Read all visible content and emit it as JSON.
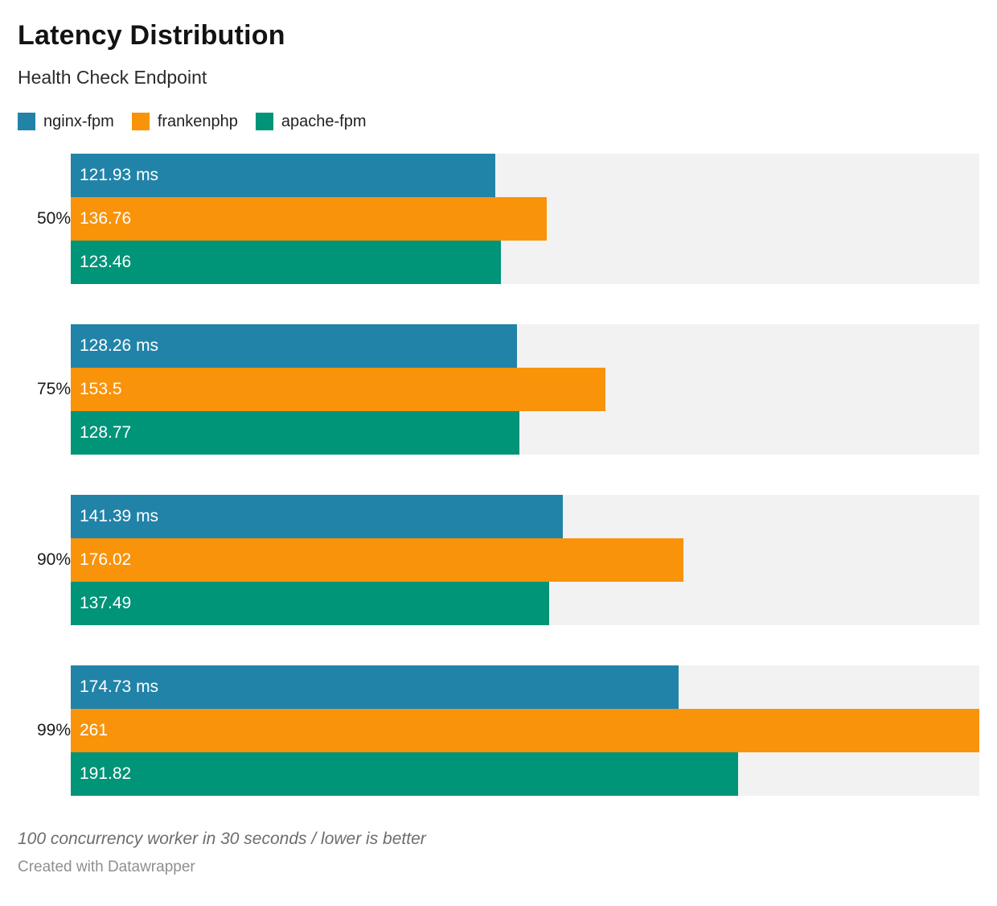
{
  "header": {
    "title": "Latency Distribution",
    "subtitle": "Health Check Endpoint"
  },
  "legend": [
    {
      "label": "nginx-fpm",
      "color": "#2183a8"
    },
    {
      "label": "frankenphp",
      "color": "#f9930a"
    },
    {
      "label": "apache-fpm",
      "color": "#009478"
    }
  ],
  "chart_data": {
    "type": "bar",
    "orientation": "horizontal",
    "title": "Latency Distribution",
    "subtitle": "Health Check Endpoint",
    "categories": [
      "50%",
      "75%",
      "90%",
      "99%"
    ],
    "series": [
      {
        "name": "nginx-fpm",
        "color": "#2183a8",
        "values": [
          121.93,
          128.26,
          141.39,
          174.73
        ],
        "labels": [
          "121.93 ms",
          "128.26 ms",
          "141.39 ms",
          "174.73 ms"
        ]
      },
      {
        "name": "frankenphp",
        "color": "#f9930a",
        "values": [
          136.76,
          153.5,
          176.02,
          261
        ],
        "labels": [
          "136.76",
          "153.5",
          "176.02",
          "261"
        ]
      },
      {
        "name": "apache-fpm",
        "color": "#009478",
        "values": [
          123.46,
          128.77,
          137.49,
          191.82
        ],
        "labels": [
          "123.46",
          "128.77",
          "137.49",
          "191.82"
        ]
      }
    ],
    "unit": "ms",
    "xlim": [
      0,
      261
    ],
    "track_color": "#f2f2f2",
    "grid": false,
    "legend_position": "top"
  },
  "footer": {
    "note": "100 concurrency worker in 30 seconds / lower is better",
    "byline": "Created with Datawrapper"
  }
}
